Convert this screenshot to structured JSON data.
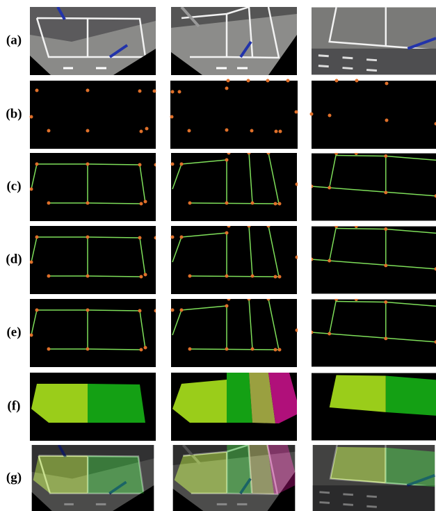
{
  "figure": {
    "row_labels": [
      "(a)",
      "(b)",
      "(c)",
      "(d)",
      "(e)",
      "(f)",
      "(g)"
    ]
  }
}
